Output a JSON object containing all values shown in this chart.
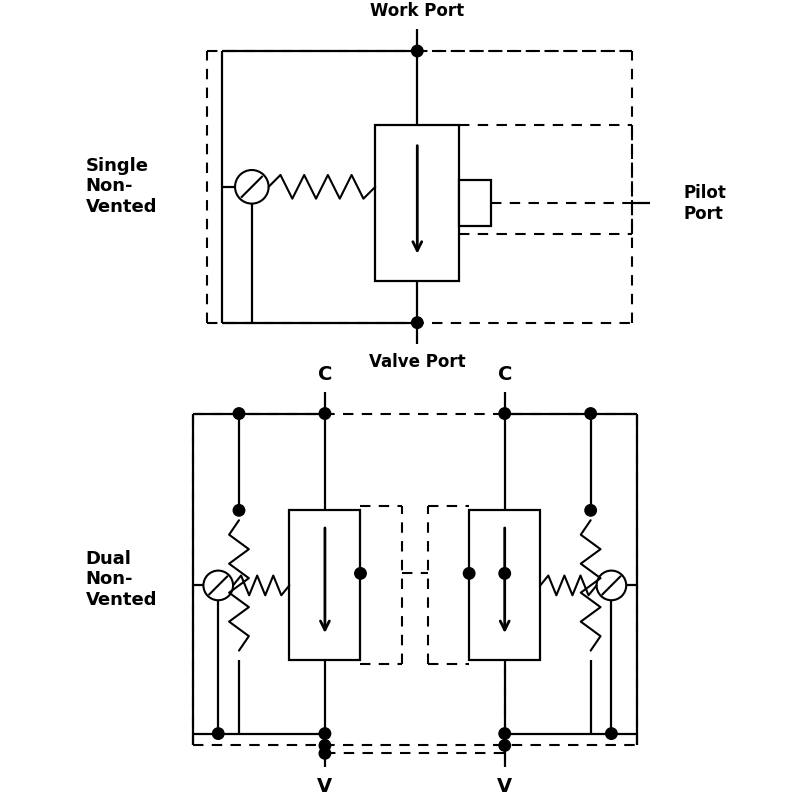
{
  "bg_color": "#ffffff",
  "line_color": "#000000",
  "label_single": "Single\nNon-\nVented",
  "label_dual": "Dual\nNon-\nVented",
  "label_work_port": "Work Port",
  "label_valve_port": "Valve Port",
  "label_pilot_port": "Pilot\nPort",
  "label_C1": "C",
  "label_C2": "C",
  "label_V1": "V",
  "label_V2": "V"
}
